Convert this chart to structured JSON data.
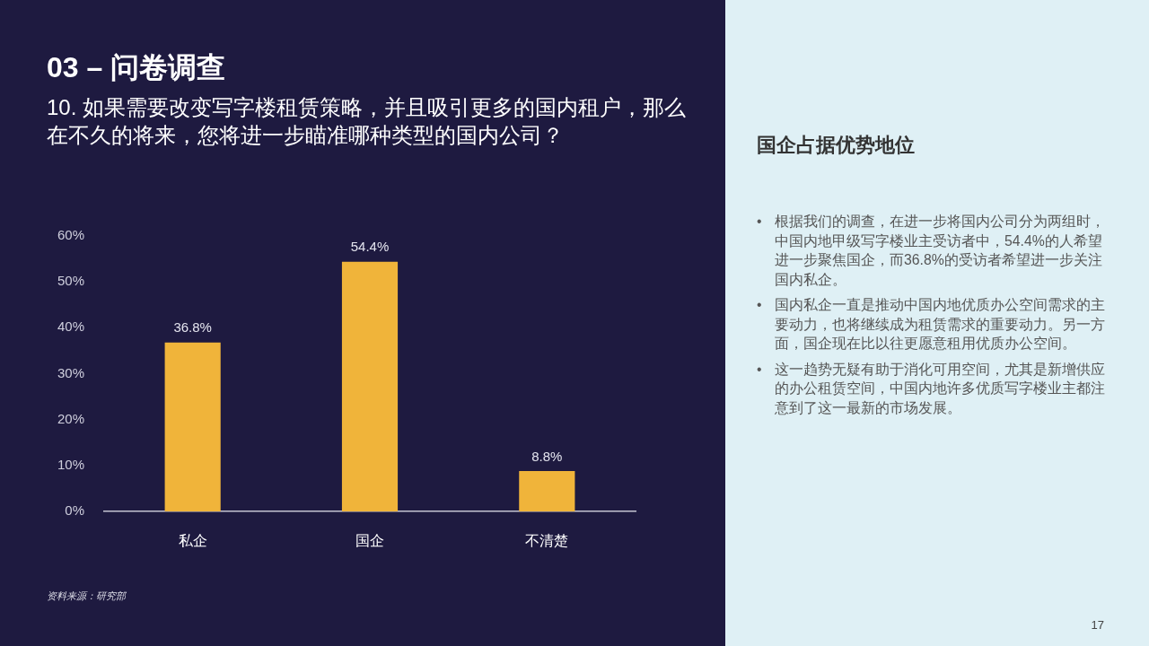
{
  "chart_data": {
    "type": "bar",
    "title": "03 – 问卷调查",
    "subtitle": "10. 如果需要改变写字楼租赁策略，并且吸引更多的国内租户，那么在不久的将来，您将进一步瞄准哪种类型的国内公司？",
    "categories": [
      "私企",
      "国企",
      "不清楚"
    ],
    "values": [
      36.8,
      54.4,
      8.8
    ],
    "color": "#f0b43a",
    "value_labels": [
      "36.8%",
      "54.4%",
      "8.8%"
    ],
    "ylim": [
      0,
      60
    ],
    "yticks": [
      {
        "value": 0,
        "label": "0%"
      },
      {
        "value": 10,
        "label": "10%"
      },
      {
        "value": 20,
        "label": "20%"
      },
      {
        "value": 30,
        "label": "30%"
      },
      {
        "value": 40,
        "label": "40%"
      },
      {
        "value": 50,
        "label": "50%"
      },
      {
        "value": 60,
        "label": "60%"
      }
    ],
    "grid": false,
    "legend": false,
    "annotations": [
      "国企占据优势地位",
      "• 根据我们的调查，在进一步将国内公司分为两组时，中国内地甲级写字楼业主受访者中，54.4%的人希望进一步聚焦国企，而36.8%的受访者希望进一步关注国内私企。",
      "• 国内私企一直是推动中国内地优质办公空间需求的主要动力，也将继续成为租赁需求的重要动力。另一方面，国企现在比以往更愿意租用优质办公空间。",
      "• 这一趋势无疑有助于消化可用空间，尤其是新增供应的办公租赁空间，中国内地许多优质写字楼业主都注意到了这一最新的市场发展。",
      "资料来源：研究部",
      "17"
    ]
  }
}
